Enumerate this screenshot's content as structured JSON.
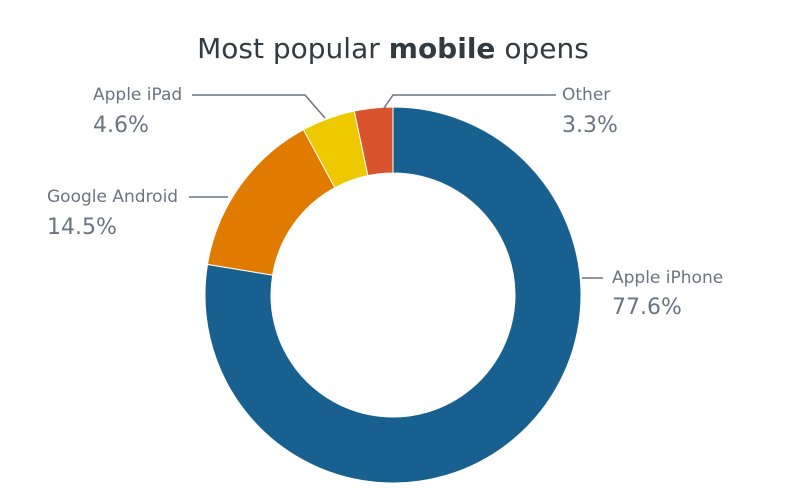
{
  "chart_data": {
    "type": "donut",
    "title": [
      "Most popular",
      "mobile",
      "opens"
    ],
    "categories": [
      "Apple iPhone",
      "Google Android",
      "Apple iPad",
      "Other"
    ],
    "values": [
      77.6,
      14.5,
      4.6,
      3.3
    ],
    "value_labels": [
      "77.6%",
      "14.5%",
      "4.6%",
      "3.3%"
    ],
    "colors": [
      "#17608f",
      "#e07b00",
      "#efc900",
      "#d9542c"
    ]
  }
}
